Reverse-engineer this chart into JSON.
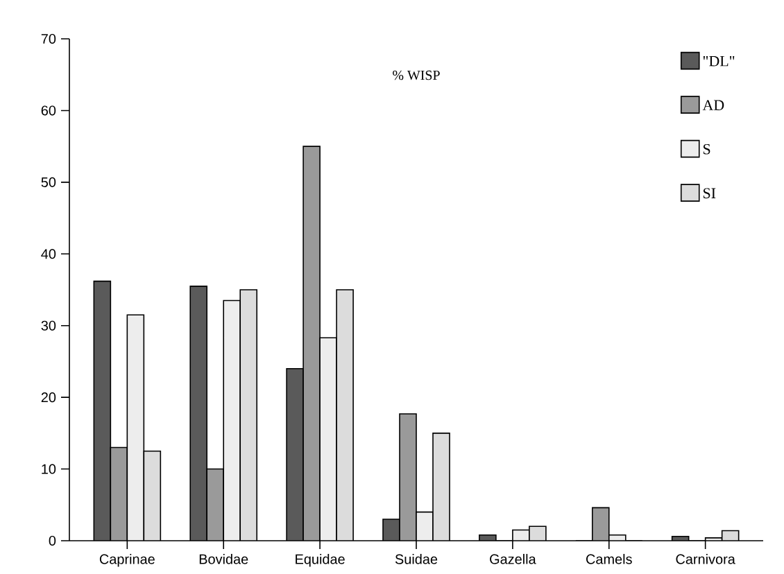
{
  "chart_data": {
    "type": "bar",
    "title": "% WISP",
    "categories": [
      "Caprinae",
      "Bovidae",
      "Equidae",
      "Suidae",
      "Gazella",
      "Camels",
      "Carnivora"
    ],
    "series": [
      {
        "name": "\"DL\"",
        "color": "#5a5a5a",
        "values": [
          36.2,
          35.5,
          24,
          3,
          0.8,
          0,
          0.6
        ]
      },
      {
        "name": "AD",
        "color": "#9a9a9a",
        "values": [
          13,
          10,
          55,
          17.7,
          0,
          4.6,
          0
        ]
      },
      {
        "name": "S",
        "color": "#ededed",
        "values": [
          31.5,
          33.5,
          28.3,
          4,
          1.5,
          0.8,
          0.4
        ]
      },
      {
        "name": "SI",
        "color": "#dcdcdc",
        "values": [
          12.5,
          35,
          35,
          15,
          2,
          0,
          1.4
        ]
      }
    ],
    "ylim": [
      0,
      70
    ],
    "yticks": [
      0,
      10,
      20,
      30,
      40,
      50,
      60,
      70
    ],
    "legend": "top right",
    "grid": false
  }
}
